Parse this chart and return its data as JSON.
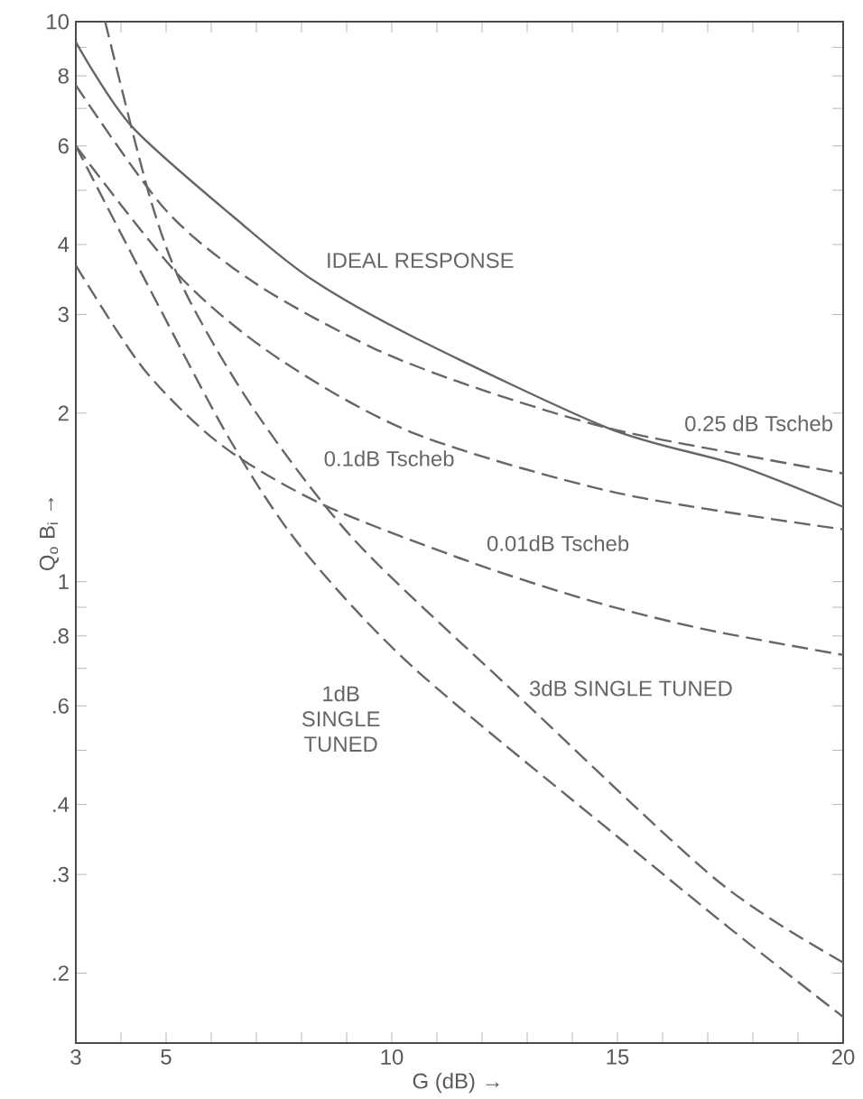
{
  "chart_data": {
    "type": "line",
    "xlabel": "G (dB) →",
    "ylabel": "Q$_{o}$ B$_{i}$ →",
    "log": "y",
    "grid": false,
    "legend": false,
    "marker": "none",
    "xlim": [
      3,
      20
    ],
    "ylim": [
      0.15,
      10
    ],
    "xticks": [
      3,
      {
        "value": 4,
        "label": null
      },
      5,
      {
        "value": 6,
        "label": null
      },
      {
        "value": 7,
        "label": null
      },
      {
        "value": 8,
        "label": null
      },
      {
        "value": 9,
        "label": null
      },
      10,
      {
        "value": 11,
        "label": null
      },
      {
        "value": 12,
        "label": null
      },
      {
        "value": 13,
        "label": null
      },
      {
        "value": 14,
        "label": null
      },
      15,
      {
        "value": 16,
        "label": null
      },
      {
        "value": 17,
        "label": null
      },
      {
        "value": 18,
        "label": null
      },
      {
        "value": 19,
        "label": null
      },
      20
    ],
    "yticks": [
      {
        "value": 0.2,
        "label": ".2"
      },
      {
        "value": 0.3,
        "label": ".3"
      },
      {
        "value": 0.4,
        "label": ".4"
      },
      {
        "value": 0.5,
        "label": null
      },
      {
        "value": 0.6,
        "label": ".6"
      },
      {
        "value": 0.7,
        "label": null
      },
      {
        "value": 0.8,
        "label": ".8"
      },
      {
        "value": 0.9,
        "label": null
      },
      1,
      2,
      3,
      4,
      {
        "value": 5,
        "label": null
      },
      6,
      {
        "value": 7,
        "label": null
      },
      8,
      {
        "value": 9,
        "label": null
      },
      10
    ],
    "series": [
      {
        "name": "IDEAL RESPONSE",
        "color": "#666666",
        "line_style": "solid",
        "x": [
          3,
          4.24,
          6.64,
          8.24,
          10.5,
          14.8,
          17.6,
          20
        ],
        "values": [
          9.2,
          6.5,
          4.38,
          3.46,
          2.73,
          1.88,
          1.62,
          1.36
        ]
      },
      {
        "name": "0.25 dB Tscheb",
        "color": "#666666",
        "line_style": "dashed",
        "x": [
          3,
          5,
          7,
          9.6,
          12,
          14.8,
          17.5,
          20
        ],
        "values": [
          7.7,
          4.6,
          3.4,
          2.61,
          2.2,
          1.88,
          1.7,
          1.56
        ]
      },
      {
        "name": "0.1dB Tscheb",
        "color": "#666666",
        "line_style": "dashed",
        "x": [
          3,
          5.3,
          7.5,
          10.5,
          15,
          20
        ],
        "values": [
          6.0,
          3.51,
          2.5,
          1.84,
          1.44,
          1.24
        ]
      },
      {
        "name": "0.01dB Tscheb",
        "color": "#666666",
        "line_style": "dashed",
        "x": [
          3,
          4.5,
          6.24,
          8.5,
          11.8,
          14.5,
          17,
          20
        ],
        "values": [
          3.67,
          2.4,
          1.75,
          1.37,
          1.08,
          0.92,
          0.82,
          0.74
        ]
      },
      {
        "name": "1dB SINGLE TUNED",
        "color": "#666666",
        "line_style": "dashed",
        "x": [
          3,
          4.64,
          6.4,
          8,
          10.5,
          15.2,
          17.5,
          20
        ],
        "values": [
          6.0,
          3.33,
          1.8,
          1.15,
          0.7,
          0.34,
          0.24,
          0.167
        ]
      },
      {
        "name": "3dB SINGLE TUNED",
        "color": "#666666",
        "line_style": "dashed",
        "x": [
          3.65,
          4.65,
          5.45,
          7,
          9.2,
          12.7,
          17.2,
          20
        ],
        "values": [
          10,
          4.83,
          3.26,
          2.0,
          1.18,
          0.636,
          0.293,
          0.209
        ]
      }
    ]
  }
}
